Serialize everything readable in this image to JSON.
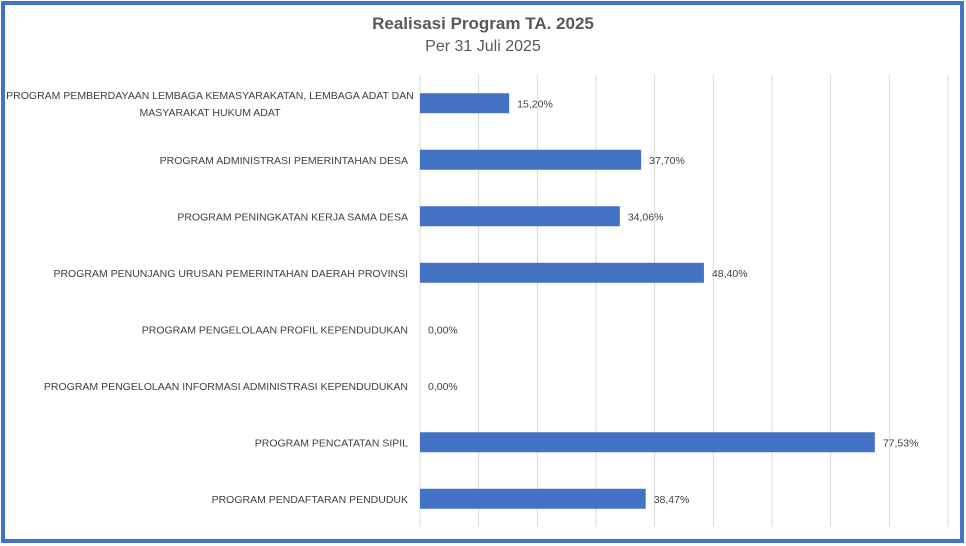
{
  "chart_data": {
    "type": "bar",
    "orientation": "horizontal",
    "title": "Realisasi Program TA. 2025",
    "subtitle": "Per 31 Juli 2025",
    "xlabel": "",
    "ylabel": "",
    "xlim": [
      0,
      90
    ],
    "grid": true,
    "legend": "none",
    "bar_color": "#4472c4",
    "categories": [
      [
        "PROGRAM PEMBERDAYAAN LEMBAGA KEMASYARAKATAN, LEMBAGA ADAT DAN",
        "MASYARAKAT HUKUM ADAT"
      ],
      [
        "PROGRAM ADMINISTRASI PEMERINTAHAN DESA"
      ],
      [
        "PROGRAM PENINGKATAN KERJA SAMA DESA"
      ],
      [
        "PROGRAM PENUNJANG URUSAN PEMERINTAHAN DAERAH PROVINSI"
      ],
      [
        "PROGRAM PENGELOLAAN PROFIL KEPENDUDUKAN"
      ],
      [
        "PROGRAM PENGELOLAAN INFORMASI ADMINISTRASI KEPENDUDUKAN"
      ],
      [
        "PROGRAM PENCATATAN SIPIL"
      ],
      [
        "PROGRAM PENDAFTARAN PENDUDUK"
      ]
    ],
    "values": [
      15.2,
      37.7,
      34.06,
      48.4,
      0.0,
      0.0,
      77.53,
      38.47
    ],
    "data_labels": [
      "15,20%",
      "37,70%",
      "34,06%",
      "48,40%",
      "0,00%",
      "0,00%",
      "77,53%",
      "38,47%"
    ]
  }
}
